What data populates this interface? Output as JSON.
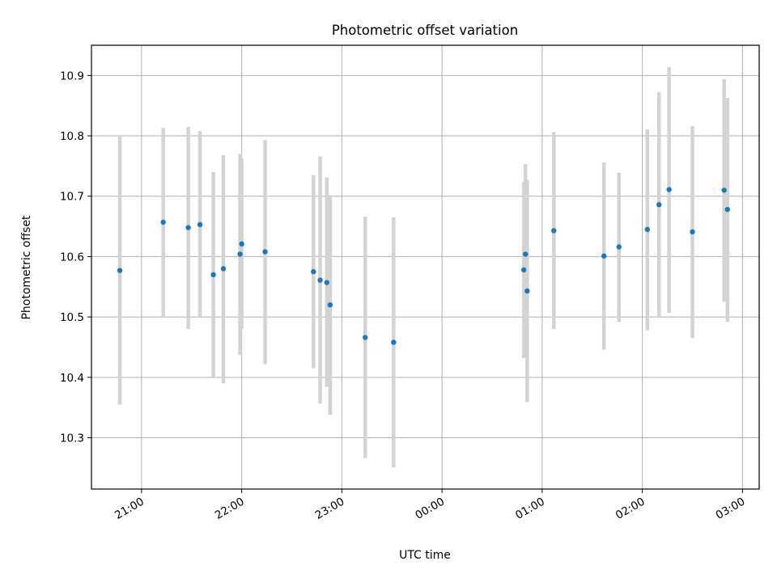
{
  "chart_data": {
    "type": "scatter",
    "title": "Photometric offset variation",
    "xlabel": "UTC time",
    "ylabel": "Photometric offset",
    "grid": true,
    "xlim": [
      "20:30",
      "03:10"
    ],
    "ylim": [
      10.215,
      10.95
    ],
    "x_ticks": [
      "21:00",
      "22:00",
      "23:00",
      "00:00",
      "01:00",
      "02:00",
      "03:00"
    ],
    "y_ticks": [
      10.3,
      10.4,
      10.5,
      10.6,
      10.7,
      10.8,
      10.9
    ],
    "points": [
      {
        "t": "20:47",
        "y": 10.577,
        "lo": 10.355,
        "hi": 10.8
      },
      {
        "t": "21:13",
        "y": 10.657,
        "lo": 10.5,
        "hi": 10.813
      },
      {
        "t": "21:28",
        "y": 10.648,
        "lo": 10.48,
        "hi": 10.815
      },
      {
        "t": "21:35",
        "y": 10.653,
        "lo": 10.5,
        "hi": 10.808
      },
      {
        "t": "21:43",
        "y": 10.57,
        "lo": 10.4,
        "hi": 10.74
      },
      {
        "t": "21:49",
        "y": 10.58,
        "lo": 10.39,
        "hi": 10.768
      },
      {
        "t": "21:59",
        "y": 10.604,
        "lo": 10.437,
        "hi": 10.77
      },
      {
        "t": "22:00",
        "y": 10.621,
        "lo": 10.48,
        "hi": 10.762
      },
      {
        "t": "22:14",
        "y": 10.608,
        "lo": 10.422,
        "hi": 10.793
      },
      {
        "t": "22:43",
        "y": 10.575,
        "lo": 10.415,
        "hi": 10.735
      },
      {
        "t": "22:47",
        "y": 10.561,
        "lo": 10.356,
        "hi": 10.766
      },
      {
        "t": "22:51",
        "y": 10.557,
        "lo": 10.384,
        "hi": 10.731
      },
      {
        "t": "22:53",
        "y": 10.52,
        "lo": 10.338,
        "hi": 10.702
      },
      {
        "t": "23:14",
        "y": 10.466,
        "lo": 10.266,
        "hi": 10.666
      },
      {
        "t": "23:31",
        "y": 10.458,
        "lo": 10.251,
        "hi": 10.665
      },
      {
        "t": "00:49",
        "y": 10.578,
        "lo": 10.432,
        "hi": 10.724
      },
      {
        "t": "00:50",
        "y": 10.604,
        "lo": 10.455,
        "hi": 10.753
      },
      {
        "t": "00:51",
        "y": 10.543,
        "lo": 10.359,
        "hi": 10.727
      },
      {
        "t": "01:07",
        "y": 10.643,
        "lo": 10.48,
        "hi": 10.806
      },
      {
        "t": "01:37",
        "y": 10.601,
        "lo": 10.446,
        "hi": 10.756
      },
      {
        "t": "01:46",
        "y": 10.616,
        "lo": 10.492,
        "hi": 10.739
      },
      {
        "t": "02:03",
        "y": 10.645,
        "lo": 10.478,
        "hi": 10.811
      },
      {
        "t": "02:10",
        "y": 10.686,
        "lo": 10.5,
        "hi": 10.872
      },
      {
        "t": "02:16",
        "y": 10.711,
        "lo": 10.507,
        "hi": 10.914
      },
      {
        "t": "02:30",
        "y": 10.641,
        "lo": 10.465,
        "hi": 10.816
      },
      {
        "t": "02:49",
        "y": 10.71,
        "lo": 10.525,
        "hi": 10.894
      },
      {
        "t": "02:51",
        "y": 10.678,
        "lo": 10.492,
        "hi": 10.863
      }
    ]
  }
}
